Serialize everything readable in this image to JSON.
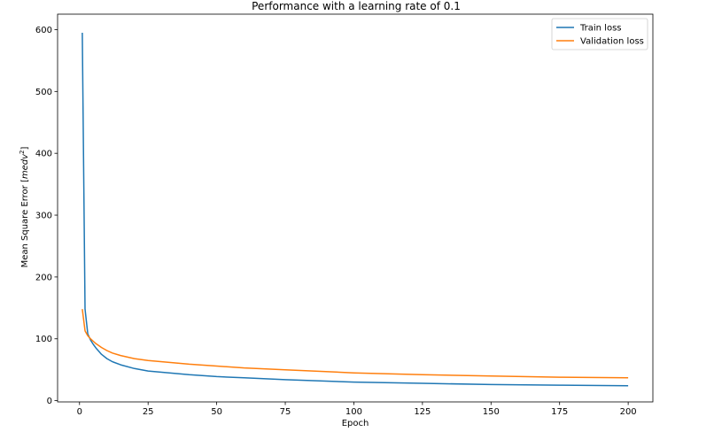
{
  "chart_data": {
    "type": "line",
    "title": "Performance with a learning rate of 0.1",
    "xlabel": "Epoch",
    "ylabel": "Mean Square Error [medv²]",
    "ylabel_parts": {
      "prefix": "Mean Square Error [",
      "var": "medv",
      "sup": "2",
      "suffix": "]"
    },
    "xlim": [
      -8,
      209
    ],
    "ylim": [
      -2,
      625
    ],
    "xticks": [
      0,
      25,
      50,
      75,
      100,
      125,
      150,
      175,
      200
    ],
    "yticks": [
      0,
      100,
      200,
      300,
      400,
      500,
      600
    ],
    "grid": false,
    "legend_position": "top-right",
    "series": [
      {
        "name": "Train loss",
        "color": "#1f77b4",
        "x": [
          1,
          2,
          3,
          4,
          5,
          6,
          7,
          8,
          10,
          12,
          15,
          20,
          25,
          30,
          40,
          50,
          60,
          75,
          100,
          125,
          150,
          175,
          200
        ],
        "y": [
          595,
          148,
          108,
          98,
          91,
          85,
          80,
          75,
          68,
          63,
          58,
          52,
          48,
          46,
          42,
          39,
          37,
          34,
          30,
          28,
          26,
          25,
          24
        ]
      },
      {
        "name": "Validation loss",
        "color": "#ff7f0e",
        "x": [
          1,
          2,
          3,
          4,
          5,
          6,
          7,
          8,
          10,
          12,
          15,
          20,
          25,
          30,
          40,
          50,
          60,
          75,
          100,
          125,
          150,
          175,
          200
        ],
        "y": [
          148,
          113,
          105,
          100,
          96,
          92,
          89,
          86,
          81,
          77,
          73,
          68,
          65,
          63,
          59,
          56,
          53,
          50,
          45,
          42,
          40,
          38,
          37
        ]
      }
    ]
  }
}
